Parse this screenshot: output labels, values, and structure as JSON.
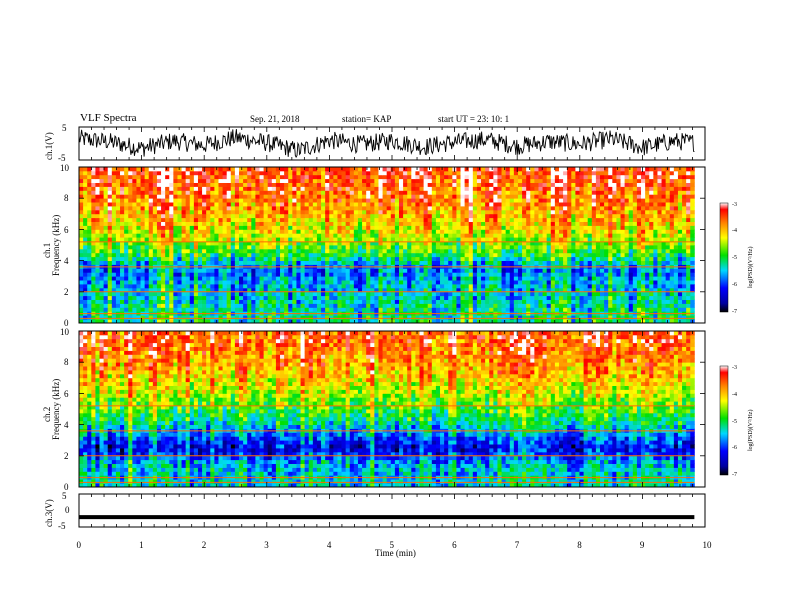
{
  "header": {
    "title": "VLF Spectra",
    "date": "Sep. 21, 2018",
    "station": "station= KAP",
    "start": "start  UT =   23: 10: 1"
  },
  "chart_data": [
    {
      "type": "line",
      "panel": "ch1-waveform",
      "ylabel": "ch.1(V)",
      "ylim": [
        -5,
        5
      ],
      "yticks": [
        "5",
        "-5"
      ],
      "x": [
        0,
        0.5,
        1,
        1.5,
        2,
        2.5,
        3,
        3.5,
        4,
        4.5,
        5,
        5.5,
        6,
        6.5,
        7,
        7.5,
        8,
        8.5,
        9,
        9.5,
        9.83
      ],
      "values": [
        1.5,
        0.5,
        -1.5,
        0.8,
        -0.5,
        1.8,
        0.2,
        -2.2,
        1.0,
        -0.3,
        0.9,
        -1.0,
        0.4,
        1.2,
        -0.8,
        0.6,
        -0.2,
        1.4,
        -1.2,
        0.7,
        0.3
      ]
    },
    {
      "type": "heatmap",
      "panel": "ch1-spectrogram",
      "ylabel": "ch.1",
      "ylabel2": "Frequency (kHz)",
      "ylim": [
        0,
        10
      ],
      "yticks": [
        "0",
        "2",
        "4",
        "6",
        "8",
        "10"
      ],
      "x_range_min": [
        0,
        9.83
      ],
      "colorbar": {
        "label": "log(PSD)(V²/Hz)",
        "range": [
          -7,
          -3
        ],
        "ticks": [
          "-3",
          "-4",
          "-5",
          "-6",
          "-7"
        ]
      },
      "freq_kHz": [
        0.5,
        1.5,
        2.5,
        3.5,
        4.5,
        5.5,
        6.5,
        7.5,
        8.5,
        9.5
      ],
      "logPSD": [
        -5.2,
        -5.4,
        -5.6,
        -5.8,
        -4.9,
        -4.4,
        -4.1,
        -3.8,
        -3.6,
        -3.4
      ]
    },
    {
      "type": "heatmap",
      "panel": "ch2-spectrogram",
      "ylabel": "ch.2",
      "ylabel2": "Frequency (kHz)",
      "ylim": [
        0,
        10
      ],
      "yticks": [
        "0",
        "2",
        "4",
        "6",
        "8",
        "10"
      ],
      "x_range_min": [
        0,
        9.83
      ],
      "colorbar": {
        "label": "log(PSD)(V²/Hz)",
        "range": [
          -7,
          -3
        ],
        "ticks": [
          "-3",
          "-4",
          "-5",
          "-6",
          "-7"
        ]
      },
      "freq_kHz": [
        0.5,
        1.5,
        2.5,
        3.5,
        4.5,
        5.5,
        6.5,
        7.5,
        8.5,
        9.5
      ],
      "logPSD": [
        -5.4,
        -5.5,
        -6.3,
        -5.6,
        -5.0,
        -4.6,
        -4.2,
        -3.9,
        -3.7,
        -3.5
      ]
    },
    {
      "type": "line",
      "panel": "ch3-waveform",
      "ylabel": "ch.3(V)",
      "ylim": [
        -5,
        5
      ],
      "yticks": [
        "5",
        "0",
        "-5"
      ],
      "x": [
        0,
        9.83
      ],
      "values": [
        -2,
        -2
      ]
    }
  ],
  "xaxis": {
    "xlabel": "Time (min)",
    "xlim": [
      0,
      10
    ],
    "ticks": [
      "0",
      "1",
      "2",
      "3",
      "4",
      "5",
      "6",
      "7",
      "8",
      "9",
      "10"
    ]
  }
}
